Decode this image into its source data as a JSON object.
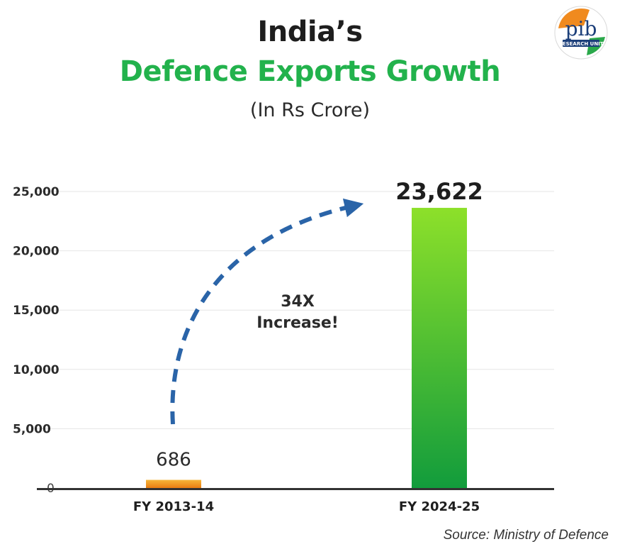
{
  "header": {
    "title_line1": "India’s",
    "title_line2": "Defence Exports Growth",
    "subtitle": "(In Rs Crore)"
  },
  "logo": {
    "icon": "pib-research-unit-logo",
    "text": "pib",
    "subtext": "RESEARCH UNIT"
  },
  "colors": {
    "title_accent": "#22b24c",
    "bar_small": "#f0921e",
    "bar_big_top": "#8de02a",
    "bar_big_bottom": "#129c3c",
    "arrow": "#2a64a8"
  },
  "chart_data": {
    "type": "bar",
    "categories": [
      "FY 2013-14",
      "FY 2024-25"
    ],
    "values": [
      686,
      23622
    ],
    "value_labels": [
      "686",
      "23,622"
    ],
    "ylim": [
      0,
      25000
    ],
    "yticks": [
      0,
      5000,
      10000,
      15000,
      20000,
      25000
    ],
    "ytick_labels": [
      "0",
      "5,000",
      "10,000",
      "15,000",
      "20,000",
      "25,000"
    ],
    "grid": true,
    "annotation": {
      "line1": "34X",
      "line2": "Increase!"
    }
  },
  "footer": {
    "source": "Source: Ministry of Defence"
  }
}
